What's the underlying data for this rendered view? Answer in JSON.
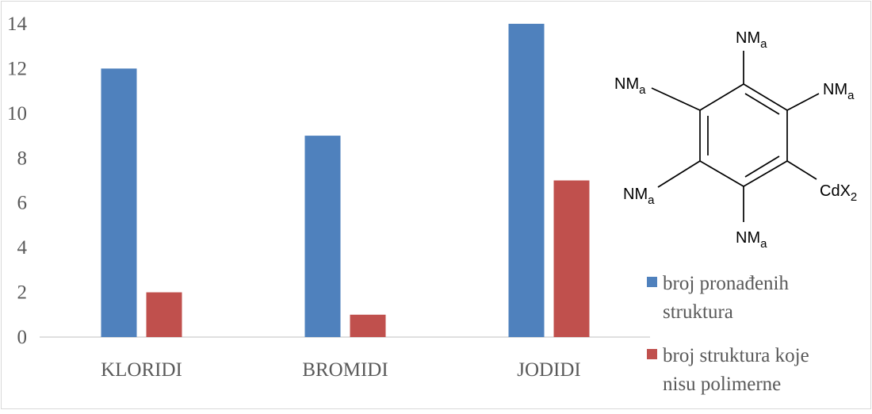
{
  "chart_data": {
    "type": "bar",
    "categories": [
      "KLORIDI",
      "BROMIDI",
      "JODIDI"
    ],
    "series": [
      {
        "name": "broj pronađenih struktura",
        "values": [
          12,
          9,
          14
        ],
        "color": "#4f81bd"
      },
      {
        "name": "broj struktura koje nisu polimerne",
        "values": [
          2,
          1,
          7
        ],
        "color": "#c0504d"
      }
    ],
    "yticks": [
      "0",
      "2",
      "4",
      "6",
      "8",
      "10",
      "12",
      "14"
    ],
    "ylim": [
      0,
      14
    ],
    "grid": false,
    "legend_position": "right",
    "legend_lines": [
      [
        "broj pronađenih",
        "struktura"
      ],
      [
        "broj struktura koje",
        "nisu polimerne"
      ]
    ]
  },
  "molecule": {
    "label": "NM",
    "label_sub": "a",
    "metal_label": "CdX",
    "metal_sub": "2"
  }
}
